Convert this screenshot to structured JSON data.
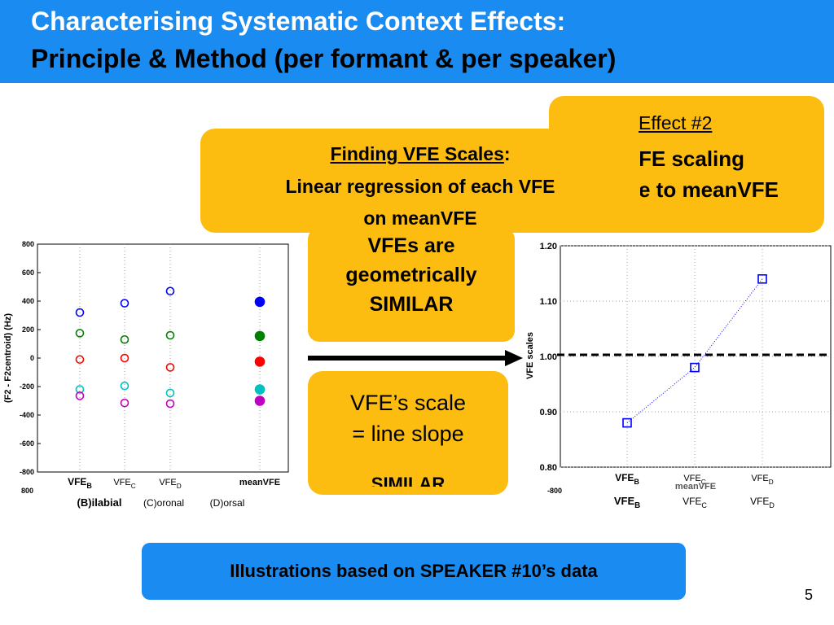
{
  "header": {
    "title_line1": "Characterising Systematic Context Effects:",
    "title_line2": "Principle & Method (per formant & per speaker)"
  },
  "effect_box": {
    "heading": "Effect #2",
    "line1": "FE scaling",
    "line2": "e to meanVFE"
  },
  "finding_box": {
    "heading": "Finding VFE Scales",
    "colon": ":",
    "line1": "Linear regression of each VFE",
    "line2": "on meanVFE"
  },
  "similar_box": {
    "line1": "VFEs are",
    "line2": "geometrically",
    "line3": "SIMILAR"
  },
  "scale_box": {
    "line1": "VFE’s scale",
    "line2": "=  line slope",
    "ghost": "SIMILAR"
  },
  "banner": {
    "text": "Illustrations based on SPEAKER #10’s data"
  },
  "slide_number": "5",
  "colors": {
    "header_blue": "#1a8bf0",
    "box_yellow": "#fcbd10",
    "series_blue": "#0000ff",
    "series_green": "#008000",
    "series_red": "#ff0000",
    "series_cyan": "#00c0c0",
    "series_magenta": "#c000c0"
  },
  "chart_data": [
    {
      "type": "scatter",
      "ylabel": "(F2 - F2centroid) (Hz)",
      "ylim": [
        -800,
        800
      ],
      "yticks": [
        "800",
        "600",
        "400",
        "200",
        "0",
        "-200",
        "-400",
        "-600",
        "-800"
      ],
      "categories": [
        "VFE_B",
        "VFE_C",
        "VFE_D",
        "meanVFE"
      ],
      "xtick_labels": [
        {
          "main": "VFE",
          "sub": "B"
        },
        {
          "main": "VFE",
          "sub": "C"
        },
        {
          "main": "VFE",
          "sub": "D"
        },
        {
          "main": "meanVFE",
          "sub": ""
        }
      ],
      "below_labels": [
        "(B)ilabial",
        "(C)oronal",
        "(D)orsal"
      ],
      "stray_tick": "800",
      "series": [
        {
          "color": "#0000ff",
          "values": [
            320,
            385,
            470,
            395
          ]
        },
        {
          "color": "#008000",
          "values": [
            175,
            130,
            160,
            155
          ]
        },
        {
          "color": "#ff0000",
          "values": [
            -10,
            0,
            -65,
            -25
          ]
        },
        {
          "color": "#00c0c0",
          "values": [
            -220,
            -195,
            -245,
            -220
          ]
        },
        {
          "color": "#c000c0",
          "values": [
            -265,
            -315,
            -320,
            -300
          ]
        }
      ],
      "grid": "vertical dotted",
      "filled_category": "meanVFE"
    },
    {
      "type": "line",
      "ylabel": "VFE scales",
      "ylim": [
        0.8,
        1.2
      ],
      "yticks": [
        "1.20",
        "1.10",
        "1.00",
        "0.90",
        "0.80"
      ],
      "categories": [
        "VFE_B",
        "VFE_C",
        "VFE_D"
      ],
      "xtick_labels": [
        {
          "main": "VFE",
          "sub": "B"
        },
        {
          "main": "VFE",
          "sub": "C"
        },
        {
          "main": "VFE",
          "sub": "D"
        }
      ],
      "below_labels": [
        "VFE",
        "VFE",
        "VFE"
      ],
      "below_subs": [
        "B",
        "C",
        "D"
      ],
      "ghost_label": "meanVFE",
      "ghost_tick": "-800",
      "values": [
        0.88,
        0.98,
        1.14
      ],
      "reference_line": 1.0,
      "grid": "dotted"
    }
  ]
}
